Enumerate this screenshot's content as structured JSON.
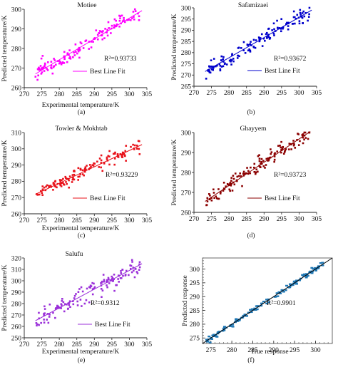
{
  "figure": {
    "captions": [
      "(a)",
      "(b)",
      "(c)",
      "(d)",
      "(e)",
      "(f)"
    ]
  },
  "colors": {
    "motiee": "#ff00ff",
    "safamizaei": "#0000cc",
    "towler": "#e8131b",
    "ghayyem": "#8b0000",
    "salufu": "#9b30d9",
    "regression": "#1f77b4",
    "fit_line_f": "#000000"
  },
  "chart_data": [
    {
      "type": "scatter",
      "title": "Motiee",
      "xlabel": "Experimental temperature/K",
      "ylabel": "Predicted temperature/K",
      "xlim": [
        270,
        305
      ],
      "ylim": [
        260,
        300
      ],
      "xticks": [
        270,
        275,
        280,
        285,
        290,
        295,
        300,
        305
      ],
      "yticks": [
        260,
        270,
        280,
        290,
        300
      ],
      "r2_label": "R²=0.93733",
      "r2_value": 0.93733,
      "legend": "Best Line Fit",
      "fit_line": {
        "x": [
          273.2,
          303.6
        ],
        "y": [
          267.0,
          299.3
        ]
      },
      "point_range": {
        "x": [
          273.2,
          303.0
        ],
        "spread": 3.6,
        "count": 140
      },
      "scatter_seed": 11
    },
    {
      "type": "scatter",
      "title": "Safamizaei",
      "xlabel": "",
      "ylabel": "Predicted temperature/K",
      "xlim": [
        270,
        305
      ],
      "ylim": [
        265,
        300
      ],
      "xticks": [
        270,
        275,
        280,
        285,
        290,
        295,
        300,
        305
      ],
      "yticks": [
        265,
        270,
        275,
        280,
        285,
        290,
        295,
        300
      ],
      "r2_label": "R²=0.93672",
      "r2_value": 0.93672,
      "legend": "Best Line Fit",
      "fit_line": {
        "x": [
          273.2,
          303.6
        ],
        "y": [
          271.6,
          299.0
        ]
      },
      "point_range": {
        "x": [
          273.2,
          303.0
        ],
        "spread": 3.0,
        "count": 140
      },
      "scatter_seed": 23
    },
    {
      "type": "scatter",
      "title": "Towler & Mokhtab",
      "xlabel": "Experimental temperature/K",
      "ylabel": "Predicted temperature/K",
      "xlim": [
        270,
        305
      ],
      "ylim": [
        260,
        310
      ],
      "xticks": [
        270,
        275,
        280,
        285,
        290,
        295,
        300,
        305
      ],
      "yticks": [
        260,
        270,
        280,
        290,
        300,
        310
      ],
      "r2_label": "R²=0.93229",
      "r2_value": 0.93229,
      "legend": "Best Line Fit",
      "fit_line": {
        "x": [
          273.2,
          303.6
        ],
        "y": [
          272.0,
          302.6
        ]
      },
      "point_range": {
        "x": [
          273.2,
          303.0
        ],
        "spread": 4.0,
        "count": 140
      },
      "scatter_seed": 37
    },
    {
      "type": "scatter",
      "title": "Ghayyem",
      "xlabel": "",
      "ylabel": "Predicted temperature/K",
      "xlim": [
        270,
        305
      ],
      "ylim": [
        260,
        300
      ],
      "xticks": [
        270,
        275,
        280,
        285,
        290,
        295,
        300,
        305
      ],
      "yticks": [
        260,
        270,
        280,
        290,
        300
      ],
      "r2_label": "R²=0.93723",
      "r2_value": 0.93723,
      "legend": "Best Line Fit",
      "fit_line": {
        "x": [
          273.2,
          303.2
        ],
        "y": [
          265.5,
          300.5
        ]
      },
      "point_range": {
        "x": [
          273.2,
          303.0
        ],
        "spread": 3.6,
        "count": 140
      },
      "scatter_seed": 41
    },
    {
      "type": "scatter",
      "title": "Salufu",
      "xlabel": "Experimental temperature/K",
      "ylabel": "Predicted temperature/K",
      "xlim": [
        270,
        305
      ],
      "ylim": [
        250,
        320
      ],
      "xticks": [
        270,
        275,
        280,
        285,
        290,
        295,
        300,
        305
      ],
      "yticks": [
        250,
        260,
        270,
        280,
        290,
        300,
        310,
        320
      ],
      "r2_label": "R²=0.9312",
      "r2_value": 0.9312,
      "legend": "Best Line Fit",
      "fit_line": {
        "x": [
          273.2,
          303.6
        ],
        "y": [
          265.0,
          315.0
        ]
      },
      "point_range": {
        "x": [
          273.2,
          303.0
        ],
        "spread": 7.0,
        "count": 140
      },
      "scatter_seed": 53
    },
    {
      "type": "scatter",
      "title": "",
      "xlabel": "True response",
      "ylabel": "Predicted response",
      "xlim": [
        273,
        304
      ],
      "ylim": [
        273,
        304
      ],
      "xticks": [
        275,
        280,
        285,
        290,
        295,
        300
      ],
      "yticks": [
        275,
        280,
        285,
        290,
        295,
        300
      ],
      "minor_tick_step": 1,
      "r2_label": "R²=0.9901",
      "r2_value": 0.9901,
      "legend": "",
      "fit_line": {
        "x": [
          273,
          304
        ],
        "y": [
          273,
          304
        ]
      },
      "point_range": {
        "x": [
          274.0,
          302.0
        ],
        "spread": 0.9,
        "count": 120
      },
      "scatter_seed": 67
    }
  ]
}
